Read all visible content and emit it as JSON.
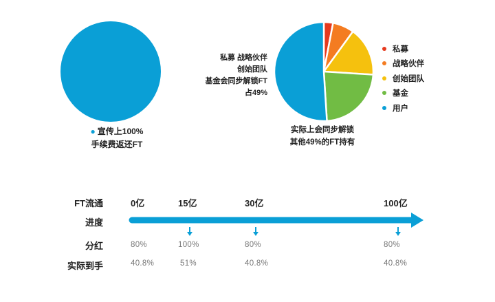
{
  "chart_data": [
    {
      "type": "pie",
      "slices": [
        {
          "name": "宣传上100%手续费返还FT",
          "value": 100,
          "color": "#0a9fd6"
        }
      ],
      "caption_lines": [
        "宣传上100%",
        "手续费返还FT"
      ]
    },
    {
      "type": "pie",
      "slices": [
        {
          "name": "私募",
          "value": 3,
          "color": "#e63a1e"
        },
        {
          "name": "战略伙伴",
          "value": 7,
          "color": "#f47c21"
        },
        {
          "name": "创始团队",
          "value": 16,
          "color": "#f5c10e"
        },
        {
          "name": "基金",
          "value": 23,
          "color": "#71bc44"
        },
        {
          "name": "用户",
          "value": 51,
          "color": "#0a9fd6"
        }
      ],
      "note_lines": [
        "私募 战略伙伴",
        "创始团队",
        "基金会同步解锁FT",
        "占49%"
      ],
      "caption_lines": [
        "实际上会同步解锁",
        "其他49%的FT持有"
      ],
      "legend_placement": "right"
    },
    {
      "type": "table",
      "row_labels": {
        "circulation": "FT流通",
        "progress": "进度",
        "dividend": "分红",
        "actual": "实际到手"
      },
      "stages": [
        "0亿",
        "15亿",
        "30亿",
        "100亿"
      ],
      "columns": [
        {
          "stage": "0亿",
          "dividend": "80%",
          "actual": "40.8%"
        },
        {
          "stage": "15亿",
          "dividend": "100%",
          "actual": "51%"
        },
        {
          "stage": "30亿",
          "dividend": "80%",
          "actual": "40.8%"
        },
        {
          "stage": "100亿",
          "dividend": "80%",
          "actual": "40.8%"
        }
      ],
      "arrow_color": "#0a9fd6"
    }
  ]
}
